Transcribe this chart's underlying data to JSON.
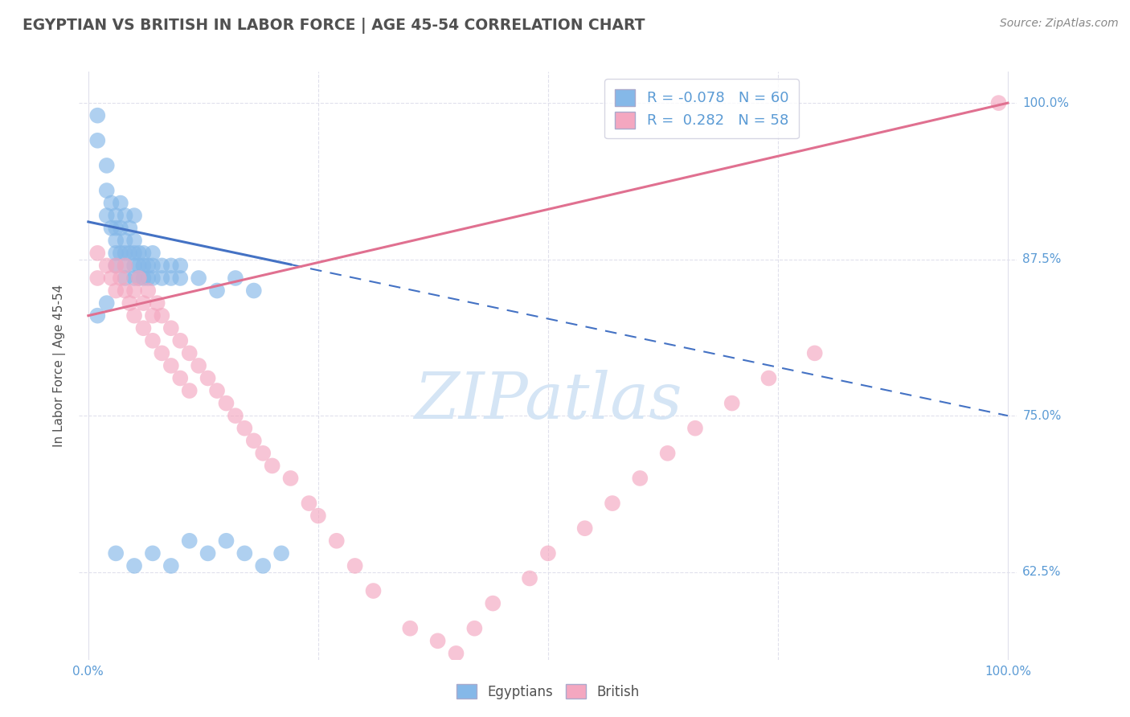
{
  "title": "EGYPTIAN VS BRITISH IN LABOR FORCE | AGE 45-54 CORRELATION CHART",
  "source": "Source: ZipAtlas.com",
  "ylabel": "In Labor Force | Age 45-54",
  "ytick_values": [
    0.625,
    0.75,
    0.875,
    1.0
  ],
  "xtick_values": [
    0.0,
    0.25,
    0.5,
    0.75,
    1.0
  ],
  "xlim": [
    -0.01,
    1.01
  ],
  "ylim": [
    0.555,
    1.025
  ],
  "egyptian_color": "#85B8E8",
  "british_color": "#F4A7C0",
  "egyptian_line_color": "#4472C4",
  "british_line_color": "#E07090",
  "watermark_color": "#D5E5F5",
  "background_color": "#FFFFFF",
  "grid_color": "#E0E0EC",
  "title_color": "#505050",
  "axis_label_color": "#5B9BD5",
  "right_tick_color": "#5B9BD5",
  "legend_r1": "-0.078",
  "legend_n1": "60",
  "legend_r2": "0.282",
  "legend_n2": "58",
  "eg_x": [
    0.01,
    0.01,
    0.02,
    0.02,
    0.02,
    0.025,
    0.025,
    0.03,
    0.03,
    0.03,
    0.03,
    0.03,
    0.035,
    0.035,
    0.035,
    0.04,
    0.04,
    0.04,
    0.04,
    0.04,
    0.045,
    0.045,
    0.05,
    0.05,
    0.05,
    0.05,
    0.05,
    0.055,
    0.055,
    0.055,
    0.06,
    0.06,
    0.06,
    0.065,
    0.065,
    0.07,
    0.07,
    0.07,
    0.08,
    0.08,
    0.09,
    0.09,
    0.1,
    0.1,
    0.12,
    0.14,
    0.16,
    0.18,
    0.01,
    0.02,
    0.03,
    0.05,
    0.07,
    0.09,
    0.11,
    0.13,
    0.15,
    0.17,
    0.19,
    0.21
  ],
  "eg_y": [
    0.97,
    0.99,
    0.93,
    0.95,
    0.91,
    0.92,
    0.9,
    0.91,
    0.89,
    0.88,
    0.9,
    0.87,
    0.9,
    0.88,
    0.92,
    0.87,
    0.89,
    0.91,
    0.88,
    0.86,
    0.88,
    0.9,
    0.87,
    0.89,
    0.86,
    0.88,
    0.91,
    0.86,
    0.88,
    0.87,
    0.87,
    0.86,
    0.88,
    0.86,
    0.87,
    0.86,
    0.87,
    0.88,
    0.86,
    0.87,
    0.86,
    0.87,
    0.86,
    0.87,
    0.86,
    0.85,
    0.86,
    0.85,
    0.83,
    0.84,
    0.64,
    0.63,
    0.64,
    0.63,
    0.65,
    0.64,
    0.65,
    0.64,
    0.63,
    0.64
  ],
  "br_x": [
    0.01,
    0.01,
    0.02,
    0.025,
    0.03,
    0.03,
    0.035,
    0.04,
    0.04,
    0.045,
    0.05,
    0.05,
    0.055,
    0.06,
    0.06,
    0.065,
    0.07,
    0.07,
    0.075,
    0.08,
    0.08,
    0.09,
    0.09,
    0.1,
    0.1,
    0.11,
    0.11,
    0.12,
    0.13,
    0.14,
    0.15,
    0.16,
    0.17,
    0.18,
    0.19,
    0.2,
    0.22,
    0.24,
    0.25,
    0.27,
    0.29,
    0.31,
    0.35,
    0.38,
    0.4,
    0.42,
    0.44,
    0.48,
    0.5,
    0.54,
    0.57,
    0.6,
    0.63,
    0.66,
    0.7,
    0.74,
    0.79,
    0.99
  ],
  "br_y": [
    0.88,
    0.86,
    0.87,
    0.86,
    0.87,
    0.85,
    0.86,
    0.85,
    0.87,
    0.84,
    0.85,
    0.83,
    0.86,
    0.84,
    0.82,
    0.85,
    0.83,
    0.81,
    0.84,
    0.83,
    0.8,
    0.82,
    0.79,
    0.81,
    0.78,
    0.8,
    0.77,
    0.79,
    0.78,
    0.77,
    0.76,
    0.75,
    0.74,
    0.73,
    0.72,
    0.71,
    0.7,
    0.68,
    0.67,
    0.65,
    0.63,
    0.61,
    0.58,
    0.57,
    0.56,
    0.58,
    0.6,
    0.62,
    0.64,
    0.66,
    0.68,
    0.7,
    0.72,
    0.74,
    0.76,
    0.78,
    0.8,
    1.0
  ]
}
